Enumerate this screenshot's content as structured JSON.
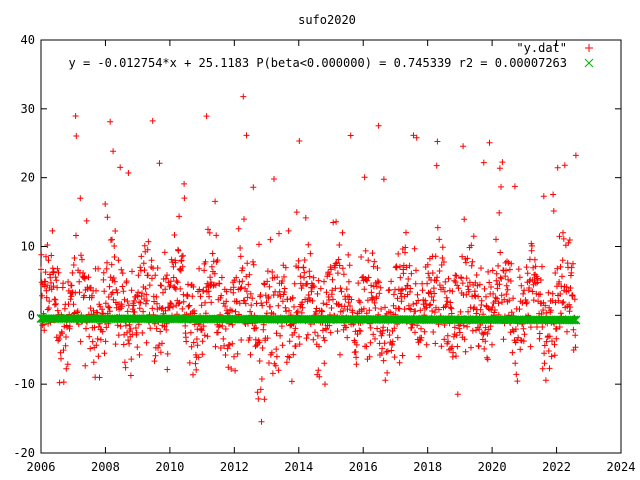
{
  "chart_data": {
    "type": "scatter",
    "title": "sufo2020",
    "xlabel": "",
    "ylabel": "",
    "xlim": [
      2006,
      2024
    ],
    "ylim": [
      -20,
      40
    ],
    "x_ticks": [
      2006,
      2008,
      2010,
      2012,
      2014,
      2016,
      2018,
      2020,
      2022,
      2024
    ],
    "y_ticks": [
      -20,
      -10,
      0,
      10,
      20,
      30,
      40
    ],
    "legend_position": "top-right",
    "grid": false,
    "series": [
      {
        "name": "\"y.dat\"",
        "marker": "+",
        "color": "#ff0000",
        "x_range": [
          2006.0,
          2022.6
        ],
        "note_values": "dense daily scatter, values mostly between -12 and 18, with spikes to ~33 and dips to ~-19"
      },
      {
        "name": "y = -0.012754*x + 25.1183 P(beta<0.000000) = 0.745339 r2 = 0.00007263",
        "marker": "x",
        "color": "#00b000",
        "fit": {
          "slope": -0.012754,
          "intercept": 25.1183
        },
        "x_range": [
          2006.0,
          2022.6
        ]
      }
    ]
  }
}
